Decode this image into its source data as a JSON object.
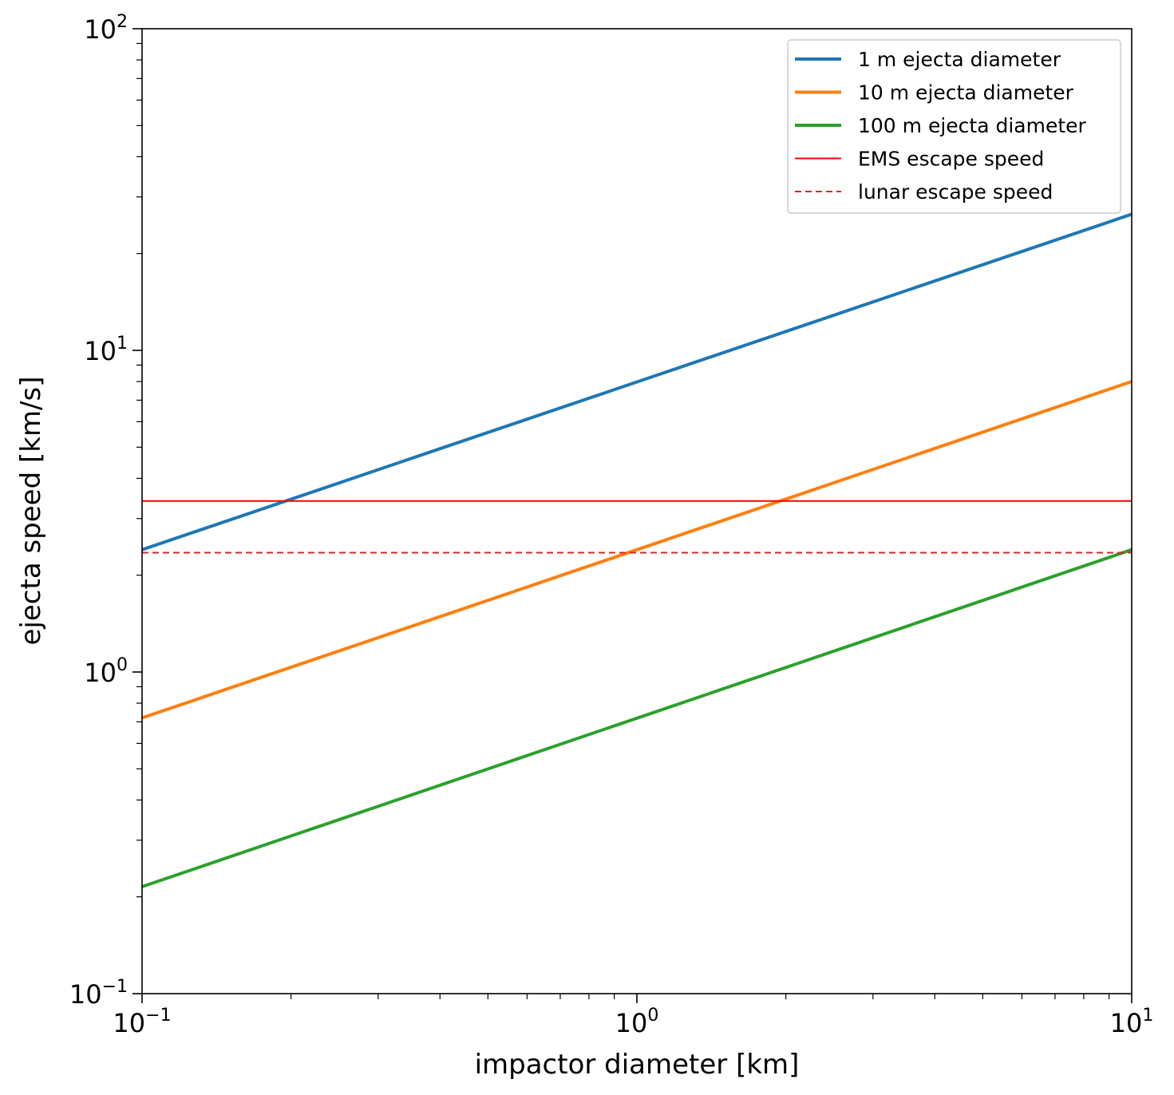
{
  "chart_data": {
    "type": "line",
    "xlabel": "impactor diameter [km]",
    "ylabel": "ejecta speed [km/s]",
    "xscale": "log",
    "yscale": "log",
    "xlim": [
      0.1,
      10
    ],
    "ylim": [
      0.1,
      100
    ],
    "x_ticks": [
      {
        "value": 0.1,
        "base": "10",
        "exp": "−1"
      },
      {
        "value": 1,
        "base": "10",
        "exp": "0"
      },
      {
        "value": 10,
        "base": "10",
        "exp": "1"
      }
    ],
    "y_ticks": [
      {
        "value": 0.1,
        "base": "10",
        "exp": "−1"
      },
      {
        "value": 1,
        "base": "10",
        "exp": "0"
      },
      {
        "value": 10,
        "base": "10",
        "exp": "1"
      },
      {
        "value": 100,
        "base": "10",
        "exp": "2"
      }
    ],
    "grid": false,
    "legend_position": "top-right",
    "series": [
      {
        "name": "1 m ejecta diameter",
        "color": "#1f77b4",
        "style": "solid",
        "x": [
          0.1,
          10
        ],
        "y": [
          2.4,
          26.5
        ]
      },
      {
        "name": "10 m ejecta diameter",
        "color": "#ff7f0e",
        "style": "solid",
        "x": [
          0.1,
          10
        ],
        "y": [
          0.72,
          8.0
        ]
      },
      {
        "name": "100 m ejecta diameter",
        "color": "#2ca02c",
        "style": "solid",
        "x": [
          0.1,
          10
        ],
        "y": [
          0.215,
          2.4
        ]
      },
      {
        "name": "EMS escape speed",
        "color": "#ff0000",
        "style": "solid-thin",
        "x": [
          0.1,
          10
        ],
        "y": [
          3.4,
          3.4
        ]
      },
      {
        "name": "lunar escape speed",
        "color": "#d62728",
        "style": "dashed",
        "x": [
          0.1,
          10
        ],
        "y": [
          2.35,
          2.35
        ]
      }
    ]
  }
}
